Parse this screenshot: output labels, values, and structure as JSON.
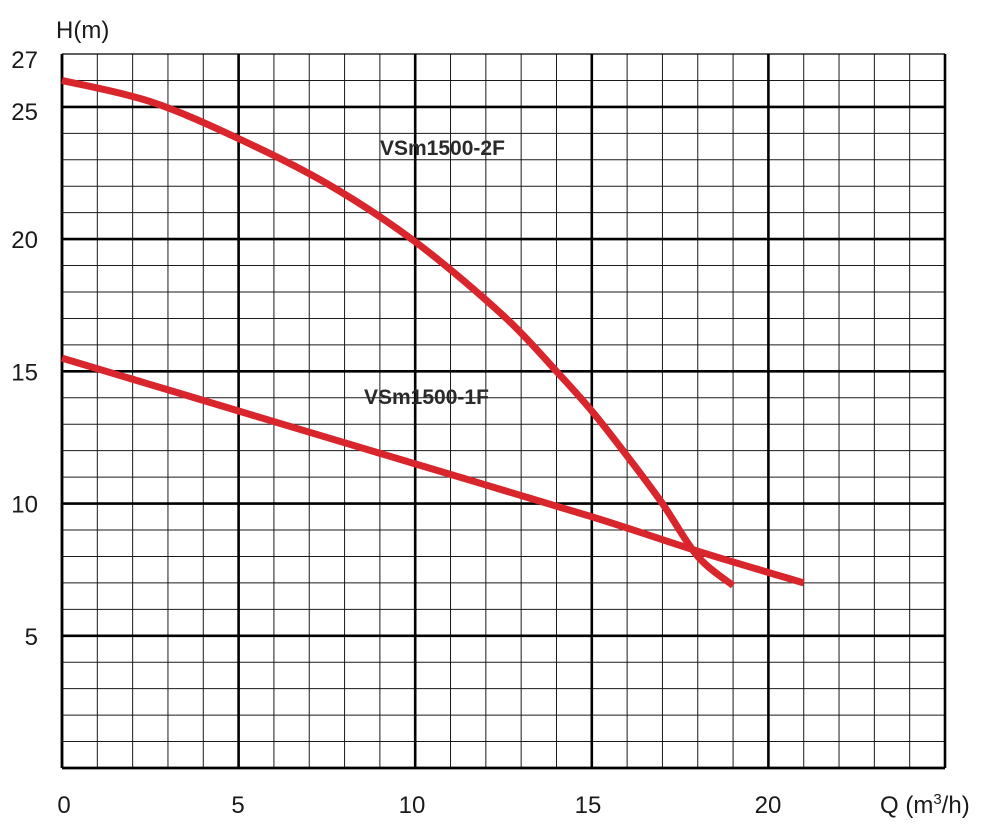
{
  "chart_data": {
    "type": "line",
    "title": "",
    "xlabel": "Q (m",
    "xlabel_sup": "3",
    "xlabel_tail": "/h)",
    "ylabel": "H(m)",
    "xlim": [
      0,
      25
    ],
    "ylim": [
      0,
      27
    ],
    "x_ticks": [
      "0",
      "5",
      "10",
      "15",
      "20"
    ],
    "y_ticks": [
      "27",
      "25",
      "20",
      "15",
      "10",
      "5"
    ],
    "y_tick_values": [
      27,
      25,
      20,
      15,
      10,
      5
    ],
    "grid": true,
    "legend": "none",
    "series_color": "#d9252c",
    "series": [
      {
        "name": "VSm1500-2F",
        "x": [
          0,
          2.5,
          5,
          7.5,
          10,
          12.5,
          14,
          15,
          16,
          17,
          18,
          19
        ],
        "y": [
          26,
          25.2,
          23.8,
          22.1,
          19.9,
          17.1,
          15,
          13.5,
          11.8,
          10,
          8,
          6.9
        ]
      },
      {
        "name": "VSm1500-1F",
        "x": [
          0,
          5,
          10,
          15,
          18,
          21
        ],
        "y": [
          15.5,
          13.5,
          11.5,
          9.5,
          8.2,
          7
        ]
      }
    ]
  }
}
